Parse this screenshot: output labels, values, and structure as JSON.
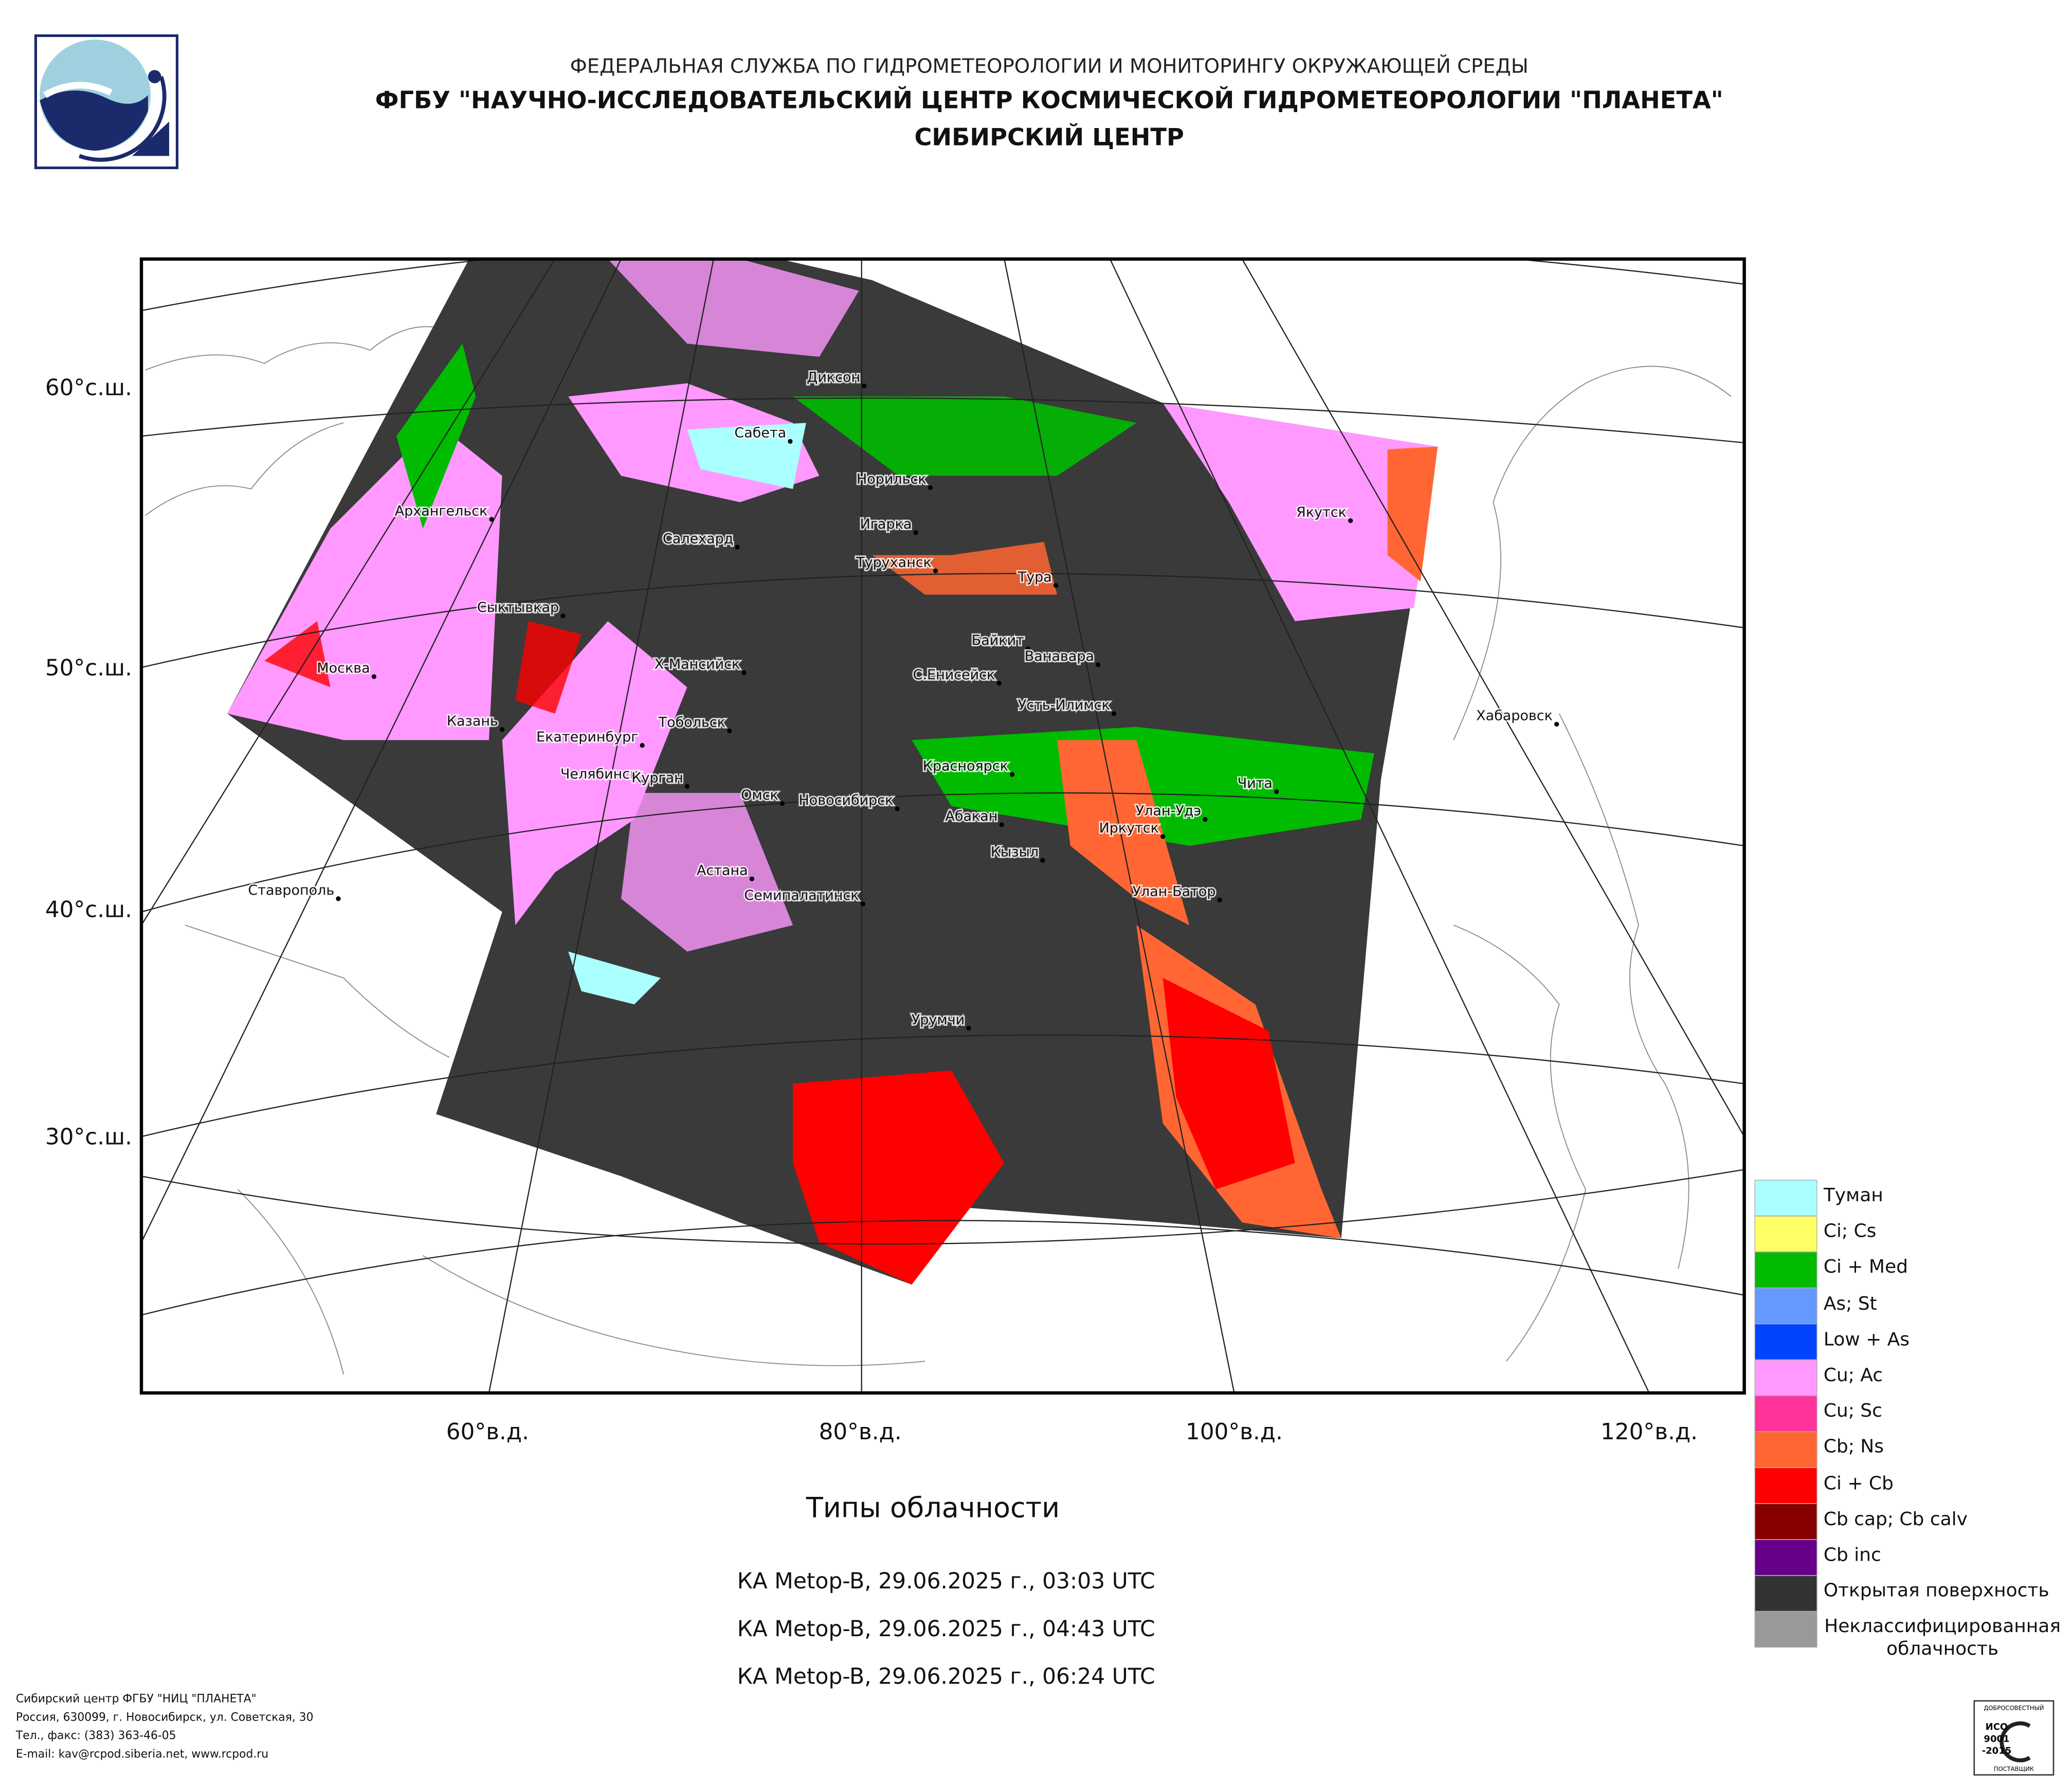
{
  "header": {
    "agency": "ФЕДЕРАЛЬНАЯ СЛУЖБА ПО ГИДРОМЕТЕОРОЛОГИИ И МОНИТОРИНГУ ОКРУЖАЮЩЕЙ СРЕДЫ",
    "institute": "ФГБУ \"НАУЧНО-ИССЛЕДОВАТЕЛЬСКИЙ ЦЕНТР КОСМИЧЕСКОЙ ГИДРОМЕТЕОРОЛОГИИ \"ПЛАНЕТА\"",
    "branch": "СИБИРСКИЙ ЦЕНТР"
  },
  "map": {
    "latitude_labels": [
      "60°с.ш.",
      "50°с.ш.",
      "40°с.ш.",
      "30°с.ш."
    ],
    "longitude_labels": [
      "60°в.д.",
      "80°в.д.",
      "100°в.д.",
      "120°в.д."
    ],
    "cities": [
      "Диксон",
      "Сабета",
      "Норильск",
      "Игарка",
      "Туруханск",
      "Тура",
      "Салехард",
      "Архангельск",
      "Якутск",
      "Сыктывкар",
      "Байкит",
      "Ванавара",
      "Москва",
      "Х-Мансийск",
      "С.Енисейск",
      "Усть-Илимск",
      "Хабаровск",
      "Казань",
      "Тобольск",
      "Екатеринбург",
      "Красноярск",
      "Чита",
      "Челябинск",
      "Курган",
      "Омск",
      "Новосибирск",
      "Абакан",
      "Улан-Удэ",
      "Иркутск",
      "Кызыл",
      "Астана",
      "Семипалатинск",
      "Улан-Батор",
      "Ставрополь",
      "Урумчи"
    ]
  },
  "legend": [
    {
      "label": "Туман",
      "color": "#aaffff"
    },
    {
      "label": "Ci; Cs",
      "color": "#ffff66"
    },
    {
      "label": "Ci + Med",
      "color": "#00bb00"
    },
    {
      "label": "As; St",
      "color": "#6699ff"
    },
    {
      "label": "Low + As",
      "color": "#0044ff"
    },
    {
      "label": "Cu; Ac",
      "color": "#ff99ff"
    },
    {
      "label": "Cu; Sc",
      "color": "#ff3399"
    },
    {
      "label": "Cb; Ns",
      "color": "#ff6633"
    },
    {
      "label": "Ci + Cb",
      "color": "#ff0000"
    },
    {
      "label": "Cb cap; Cb calv",
      "color": "#880000"
    },
    {
      "label": "Cb inc",
      "color": "#660088"
    },
    {
      "label": "Открытая поверхность",
      "color": "#333333"
    },
    {
      "label": "Неклассифицированная\nоблачность",
      "color": "#999999"
    }
  ],
  "title": "Типы облачности",
  "passes": [
    "КА Metop-B, 29.06.2025 г., 03:03 UTC",
    "КА Metop-B, 29.06.2025 г., 04:43 UTC",
    "КА Metop-B, 29.06.2025 г., 06:24 UTC"
  ],
  "footer": [
    "Сибирский центр ФГБУ \"НИЦ \"ПЛАНЕТА\"",
    "Россия, 630099, г. Новосибирск, ул. Советская, 30",
    "Тел., факс: (383) 363-46-05",
    "E-mail: kav@rcpod.siberia.net, www.rcpod.ru"
  ],
  "certificate": {
    "top": "ДОБРОСОВЕСТНЫЙ",
    "standard": "ИСО",
    "number": "9001",
    "year": "-2015",
    "bottom": "ПОСТАВЩИК"
  }
}
